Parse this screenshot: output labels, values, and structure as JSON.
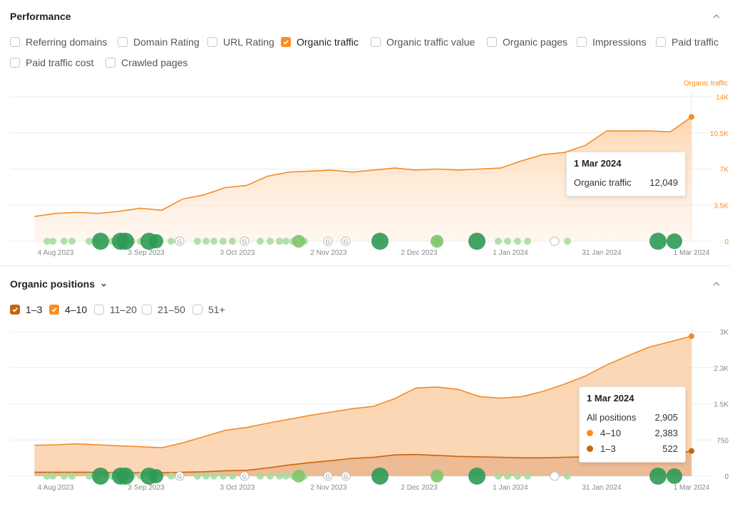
{
  "performance": {
    "title": "Performance",
    "checkboxes": [
      {
        "label": "Referring domains",
        "checked": false
      },
      {
        "label": "Domain Rating",
        "checked": false
      },
      {
        "label": "URL Rating",
        "checked": false
      },
      {
        "label": "Organic traffic",
        "checked": true
      },
      {
        "label": "Organic traffic value",
        "checked": false
      },
      {
        "label": "Organic pages",
        "checked": false
      },
      {
        "label": "Impressions",
        "checked": false
      },
      {
        "label": "Paid traffic",
        "checked": false
      },
      {
        "label": "Paid traffic cost",
        "checked": false
      },
      {
        "label": "Crawled pages",
        "checked": false
      }
    ],
    "axis_series_label": "Organic traffic",
    "tooltip": {
      "date": "1 Mar 2024",
      "label": "Organic traffic",
      "value": "12,049"
    }
  },
  "positions": {
    "title": "Organic positions",
    "checkboxes": [
      {
        "label": "1–3",
        "checked": true
      },
      {
        "label": "4–10",
        "checked": true
      },
      {
        "label": "11–20",
        "checked": false
      },
      {
        "label": "21–50",
        "checked": false
      },
      {
        "label": "51+",
        "checked": false
      }
    ],
    "tooltip": {
      "date": "1 Mar 2024",
      "rows": [
        {
          "label": "All positions",
          "value": "2,905"
        },
        {
          "label": "4–10",
          "value": "2,383",
          "color": "#ff8c1a"
        },
        {
          "label": "1–3",
          "value": "522",
          "color": "#c8650e"
        }
      ]
    }
  },
  "colors": {
    "accent": "#ff8c1a",
    "accent_dark": "#c8650e",
    "green": "#2e9a55",
    "light_green": "#a8dba0"
  },
  "chart_data": [
    {
      "type": "area",
      "y_axis_title": "Organic traffic",
      "x_tick_labels": [
        "4 Aug 2023",
        "3 Sep 2023",
        "3 Oct 2023",
        "2 Nov 2023",
        "2 Dec 2023",
        "1 Jan 2024",
        "31 Jan 2024",
        "1 Mar 2024"
      ],
      "y_tick_labels": [
        "14K",
        "10.5K",
        "7K",
        "3.5K",
        "0"
      ],
      "ylim": [
        0,
        14000
      ],
      "series": [
        {
          "name": "Organic traffic",
          "x": [
            "2023-07-28",
            "2023-08-04",
            "2023-08-11",
            "2023-08-18",
            "2023-08-25",
            "2023-09-01",
            "2023-09-08",
            "2023-09-15",
            "2023-09-22",
            "2023-09-29",
            "2023-10-06",
            "2023-10-13",
            "2023-10-20",
            "2023-10-27",
            "2023-11-03",
            "2023-11-10",
            "2023-11-17",
            "2023-11-24",
            "2023-12-01",
            "2023-12-08",
            "2023-12-15",
            "2023-12-22",
            "2023-12-29",
            "2024-01-05",
            "2024-01-12",
            "2024-01-19",
            "2024-01-26",
            "2024-02-02",
            "2024-02-09",
            "2024-02-16",
            "2024-02-23",
            "2024-03-01"
          ],
          "y": [
            2400,
            2700,
            2800,
            2700,
            2900,
            3200,
            3000,
            4100,
            4500,
            5200,
            5400,
            6300,
            6700,
            6800,
            6900,
            6700,
            6900,
            7100,
            6900,
            7000,
            6900,
            7000,
            7100,
            7800,
            8400,
            8600,
            9300,
            10700,
            10700,
            10700,
            10600,
            12049
          ]
        }
      ]
    },
    {
      "type": "area",
      "x_tick_labels": [
        "4 Aug 2023",
        "3 Sep 2023",
        "3 Oct 2023",
        "2 Nov 2023",
        "2 Dec 2023",
        "1 Jan 2024",
        "31 Jan 2024",
        "1 Mar 2024"
      ],
      "y_tick_labels": [
        "3K",
        "2.3K",
        "1.5K",
        "750",
        "0"
      ],
      "ylim": [
        0,
        3000
      ],
      "series": [
        {
          "name": "4–10",
          "x": [
            "2023-07-28",
            "2023-08-04",
            "2023-08-11",
            "2023-08-18",
            "2023-08-25",
            "2023-09-01",
            "2023-09-08",
            "2023-09-15",
            "2023-09-22",
            "2023-09-29",
            "2023-10-06",
            "2023-10-13",
            "2023-10-20",
            "2023-10-27",
            "2023-11-03",
            "2023-11-10",
            "2023-11-17",
            "2023-11-24",
            "2023-12-01",
            "2023-12-08",
            "2023-12-15",
            "2023-12-22",
            "2023-12-29",
            "2024-01-05",
            "2024-01-12",
            "2024-01-19",
            "2024-01-26",
            "2024-02-02",
            "2024-02-09",
            "2024-02-16",
            "2024-02-23",
            "2024-03-01"
          ],
          "y": [
            560,
            570,
            590,
            570,
            560,
            540,
            520,
            610,
            730,
            840,
            890,
            930,
            950,
            980,
            1010,
            1030,
            1060,
            1170,
            1380,
            1420,
            1390,
            1250,
            1230,
            1270,
            1380,
            1520,
            1680,
            1900,
            2080,
            2250,
            2350,
            2383
          ]
        },
        {
          "name": "1–3",
          "x": [
            "2023-07-28",
            "2023-08-04",
            "2023-08-11",
            "2023-08-18",
            "2023-08-25",
            "2023-09-01",
            "2023-09-08",
            "2023-09-15",
            "2023-09-22",
            "2023-09-29",
            "2023-10-06",
            "2023-10-13",
            "2023-10-20",
            "2023-10-27",
            "2023-11-03",
            "2023-11-10",
            "2023-11-17",
            "2023-11-24",
            "2023-12-01",
            "2023-12-08",
            "2023-12-15",
            "2023-12-22",
            "2023-12-29",
            "2024-01-05",
            "2024-01-12",
            "2024-01-19",
            "2024-01-26",
            "2024-02-02",
            "2024-02-09",
            "2024-02-16",
            "2024-02-23",
            "2024-03-01"
          ],
          "y": [
            80,
            80,
            80,
            80,
            70,
            70,
            70,
            80,
            90,
            110,
            120,
            170,
            230,
            280,
            320,
            370,
            390,
            440,
            450,
            430,
            410,
            400,
            390,
            380,
            380,
            390,
            400,
            410,
            420,
            430,
            440,
            522
          ]
        }
      ]
    }
  ]
}
